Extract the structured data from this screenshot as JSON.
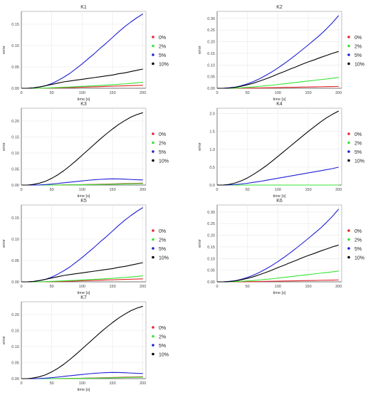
{
  "colors": {
    "0%": "#e6252a",
    "2%": "#33e533",
    "5%": "#1f1fd6",
    "10%": "#000000",
    "grid": "#e8e8e8",
    "axis": "#555555"
  },
  "chart_data": [
    {
      "type": "line",
      "title": "K1",
      "xlabel": "time [s]",
      "ylabel": "error",
      "xlim": [
        0,
        205
      ],
      "ylim": [
        0,
        0.18
      ],
      "xticks": [
        0,
        50,
        100,
        150,
        200
      ],
      "yticks": [
        0.0,
        0.05,
        0.1,
        0.15
      ],
      "ytick_labels": [
        "0.00",
        "0.05",
        "0.10",
        "0.15"
      ],
      "grid": true,
      "legend": "right",
      "x": [
        0,
        10,
        20,
        30,
        40,
        50,
        60,
        70,
        80,
        90,
        100,
        110,
        120,
        130,
        140,
        150,
        160,
        170,
        180,
        190,
        200
      ],
      "series": [
        {
          "name": "0%",
          "color_key": "0%",
          "values": [
            0,
            0,
            0,
            0,
            0.0002,
            0.0005,
            0.0008,
            0.0012,
            0.0016,
            0.002,
            0.0025,
            0.003,
            0.0034,
            0.0039,
            0.0044,
            0.0048,
            0.0053,
            0.0057,
            0.0061,
            0.0065,
            0.007
          ]
        },
        {
          "name": "2%",
          "color_key": "2%",
          "values": [
            0,
            0,
            0,
            0.0002,
            0.0006,
            0.0012,
            0.0018,
            0.0024,
            0.003,
            0.0037,
            0.0044,
            0.0051,
            0.0058,
            0.0066,
            0.0074,
            0.0083,
            0.0092,
            0.0102,
            0.0113,
            0.0126,
            0.014
          ]
        },
        {
          "name": "5%",
          "color_key": "5%",
          "values": [
            0,
            0,
            0.001,
            0.003,
            0.006,
            0.011,
            0.018,
            0.026,
            0.035,
            0.046,
            0.057,
            0.069,
            0.081,
            0.094,
            0.106,
            0.119,
            0.132,
            0.144,
            0.155,
            0.165,
            0.174
          ]
        },
        {
          "name": "10%",
          "color_key": "10%",
          "values": [
            0,
            0,
            0.001,
            0.003,
            0.006,
            0.009,
            0.012,
            0.015,
            0.017,
            0.019,
            0.021,
            0.023,
            0.025,
            0.027,
            0.029,
            0.031,
            0.034,
            0.036,
            0.039,
            0.042,
            0.045
          ]
        }
      ]
    },
    {
      "type": "line",
      "title": "K2",
      "xlabel": "time [s]",
      "ylabel": "error",
      "xlim": [
        0,
        205
      ],
      "ylim": [
        0,
        0.33
      ],
      "xticks": [
        0,
        50,
        100,
        150,
        200
      ],
      "yticks": [
        0.0,
        0.05,
        0.1,
        0.15,
        0.2,
        0.25,
        0.3
      ],
      "ytick_labels": [
        "0.00",
        "0.05",
        "0.10",
        "0.15",
        "0.20",
        "0.25",
        "0.30"
      ],
      "grid": true,
      "legend": "right",
      "x": [
        0,
        10,
        20,
        30,
        40,
        50,
        60,
        70,
        80,
        90,
        100,
        110,
        120,
        130,
        140,
        150,
        160,
        170,
        180,
        190,
        200
      ],
      "series": [
        {
          "name": "0%",
          "color_key": "0%",
          "values": [
            0,
            0,
            0,
            0,
            0,
            0.0005,
            0.001,
            0.0015,
            0.002,
            0.0025,
            0.003,
            0.0035,
            0.004,
            0.0045,
            0.005,
            0.0055,
            0.006,
            0.0065,
            0.007,
            0.0075,
            0.008
          ]
        },
        {
          "name": "2%",
          "color_key": "2%",
          "values": [
            0,
            0,
            0,
            0.001,
            0.002,
            0.004,
            0.006,
            0.008,
            0.011,
            0.013,
            0.016,
            0.019,
            0.022,
            0.025,
            0.028,
            0.031,
            0.034,
            0.037,
            0.04,
            0.043,
            0.046
          ]
        },
        {
          "name": "5%",
          "color_key": "5%",
          "values": [
            0,
            0,
            0.002,
            0.005,
            0.011,
            0.019,
            0.029,
            0.041,
            0.055,
            0.07,
            0.087,
            0.105,
            0.124,
            0.144,
            0.165,
            0.186,
            0.208,
            0.23,
            0.255,
            0.282,
            0.312
          ]
        },
        {
          "name": "10%",
          "color_key": "10%",
          "values": [
            0,
            0,
            0.001,
            0.004,
            0.009,
            0.015,
            0.022,
            0.031,
            0.04,
            0.05,
            0.061,
            0.071,
            0.082,
            0.092,
            0.103,
            0.113,
            0.122,
            0.132,
            0.141,
            0.15,
            0.158
          ]
        }
      ]
    },
    {
      "type": "line",
      "title": "K3",
      "xlabel": "time [s]",
      "ylabel": "error",
      "xlim": [
        0,
        205
      ],
      "ylim": [
        0,
        0.24
      ],
      "xticks": [
        0,
        50,
        100,
        150,
        200
      ],
      "yticks": [
        0.0,
        0.05,
        0.1,
        0.15,
        0.2
      ],
      "ytick_labels": [
        "0.00",
        "0.05",
        "0.10",
        "0.15",
        "0.20"
      ],
      "grid": true,
      "legend": "right",
      "x": [
        0,
        10,
        20,
        30,
        40,
        50,
        60,
        70,
        80,
        90,
        100,
        110,
        120,
        130,
        140,
        150,
        160,
        170,
        180,
        190,
        200
      ],
      "series": [
        {
          "name": "0%",
          "color_key": "0%",
          "values": [
            0,
            0,
            0,
            0,
            0,
            0,
            0.0002,
            0.0005,
            0.0008,
            0.0011,
            0.0014,
            0.0018,
            0.0022,
            0.0026,
            0.003,
            0.0035,
            0.004,
            0.0045,
            0.005,
            0.0055,
            0.006
          ]
        },
        {
          "name": "2%",
          "color_key": "2%",
          "values": [
            0,
            0,
            0,
            0,
            0,
            0,
            0.0001,
            0.0003,
            0.0005,
            0.0007,
            0.0009,
            0.0012,
            0.0015,
            0.0018,
            0.0022,
            0.0026,
            0.003,
            0.0034,
            0.0038,
            0.0042,
            0.0045
          ]
        },
        {
          "name": "5%",
          "color_key": "5%",
          "values": [
            0,
            0,
            0,
            0.0005,
            0.0015,
            0.003,
            0.005,
            0.007,
            0.009,
            0.011,
            0.013,
            0.015,
            0.0165,
            0.0178,
            0.0188,
            0.0192,
            0.019,
            0.0185,
            0.0175,
            0.0165,
            0.016
          ]
        },
        {
          "name": "10%",
          "color_key": "10%",
          "values": [
            0,
            0,
            0.002,
            0.006,
            0.012,
            0.021,
            0.032,
            0.045,
            0.06,
            0.076,
            0.093,
            0.11,
            0.127,
            0.144,
            0.16,
            0.175,
            0.189,
            0.201,
            0.212,
            0.22,
            0.226
          ]
        }
      ]
    },
    {
      "type": "line",
      "title": "K4",
      "xlabel": "time [s]",
      "ylabel": "error",
      "xlim": [
        0,
        205
      ],
      "ylim": [
        0,
        2.15
      ],
      "xticks": [
        0,
        50,
        100,
        150,
        200
      ],
      "yticks": [
        0.0,
        0.5,
        1.0,
        1.5,
        2.0
      ],
      "ytick_labels": [
        "0.0",
        "0.5",
        "1.0",
        "1.5",
        "2.0"
      ],
      "grid": true,
      "legend": "right",
      "x": [
        0,
        10,
        20,
        30,
        40,
        50,
        60,
        70,
        80,
        90,
        100,
        110,
        120,
        130,
        140,
        150,
        160,
        170,
        180,
        190,
        200
      ],
      "series": [
        {
          "name": "0%",
          "color_key": "0%",
          "values": [
            0,
            0,
            0,
            0,
            0,
            0,
            0,
            0,
            0,
            0,
            0,
            0,
            0,
            0,
            0,
            0,
            0,
            0,
            0,
            0,
            0
          ]
        },
        {
          "name": "2%",
          "color_key": "2%",
          "values": [
            0,
            0,
            0,
            0,
            0,
            0,
            0,
            0,
            0,
            0,
            0,
            0,
            0,
            0,
            0,
            0,
            0,
            0,
            0,
            0,
            0
          ]
        },
        {
          "name": "5%",
          "color_key": "5%",
          "values": [
            0,
            0,
            0.005,
            0.015,
            0.03,
            0.05,
            0.075,
            0.1,
            0.13,
            0.16,
            0.19,
            0.22,
            0.25,
            0.28,
            0.31,
            0.34,
            0.37,
            0.4,
            0.43,
            0.46,
            0.5
          ]
        },
        {
          "name": "10%",
          "color_key": "10%",
          "values": [
            0,
            0,
            0.02,
            0.06,
            0.12,
            0.2,
            0.3,
            0.41,
            0.53,
            0.66,
            0.8,
            0.94,
            1.08,
            1.22,
            1.36,
            1.5,
            1.63,
            1.76,
            1.88,
            1.98,
            2.07
          ]
        }
      ]
    },
    {
      "type": "line",
      "title": "K5",
      "xlabel": "time [s]",
      "ylabel": "error",
      "xlim": [
        0,
        205
      ],
      "ylim": [
        0,
        0.18
      ],
      "xticks": [
        0,
        50,
        100,
        150,
        200
      ],
      "yticks": [
        0.0,
        0.05,
        0.1,
        0.15
      ],
      "ytick_labels": [
        "0.00",
        "0.05",
        "0.10",
        "0.15"
      ],
      "grid": true,
      "legend": "right",
      "x": [
        0,
        10,
        20,
        30,
        40,
        50,
        60,
        70,
        80,
        90,
        100,
        110,
        120,
        130,
        140,
        150,
        160,
        170,
        180,
        190,
        200
      ],
      "series": [
        {
          "name": "0%",
          "color_key": "0%",
          "values": [
            0,
            0,
            0,
            0,
            0.0002,
            0.0005,
            0.0008,
            0.0012,
            0.0016,
            0.002,
            0.0025,
            0.003,
            0.0034,
            0.0039,
            0.0044,
            0.0048,
            0.0053,
            0.0057,
            0.0061,
            0.0065,
            0.007
          ]
        },
        {
          "name": "2%",
          "color_key": "2%",
          "values": [
            0,
            0,
            0,
            0.0002,
            0.0006,
            0.0012,
            0.0018,
            0.0024,
            0.003,
            0.0037,
            0.0044,
            0.0051,
            0.0058,
            0.0066,
            0.0074,
            0.0083,
            0.0092,
            0.0102,
            0.0113,
            0.0126,
            0.014
          ]
        },
        {
          "name": "5%",
          "color_key": "5%",
          "values": [
            0,
            0,
            0.001,
            0.003,
            0.006,
            0.011,
            0.018,
            0.026,
            0.035,
            0.046,
            0.057,
            0.069,
            0.081,
            0.094,
            0.106,
            0.119,
            0.132,
            0.144,
            0.155,
            0.165,
            0.174
          ]
        },
        {
          "name": "10%",
          "color_key": "10%",
          "values": [
            0,
            0,
            0.001,
            0.003,
            0.006,
            0.009,
            0.012,
            0.015,
            0.017,
            0.019,
            0.021,
            0.023,
            0.025,
            0.027,
            0.029,
            0.031,
            0.034,
            0.036,
            0.039,
            0.042,
            0.045
          ]
        }
      ]
    },
    {
      "type": "line",
      "title": "K6",
      "xlabel": "time [s]",
      "ylabel": "error",
      "xlim": [
        0,
        205
      ],
      "ylim": [
        0,
        0.33
      ],
      "xticks": [
        0,
        50,
        100,
        150,
        200
      ],
      "yticks": [
        0.0,
        0.05,
        0.1,
        0.15,
        0.2,
        0.25,
        0.3
      ],
      "ytick_labels": [
        "0.00",
        "0.05",
        "0.10",
        "0.15",
        "0.20",
        "0.25",
        "0.30"
      ],
      "grid": true,
      "legend": "right",
      "x": [
        0,
        10,
        20,
        30,
        40,
        50,
        60,
        70,
        80,
        90,
        100,
        110,
        120,
        130,
        140,
        150,
        160,
        170,
        180,
        190,
        200
      ],
      "series": [
        {
          "name": "0%",
          "color_key": "0%",
          "values": [
            0,
            0,
            0,
            0,
            0,
            0.0005,
            0.001,
            0.0015,
            0.002,
            0.0025,
            0.003,
            0.0035,
            0.004,
            0.0045,
            0.005,
            0.0055,
            0.006,
            0.0065,
            0.007,
            0.0075,
            0.008
          ]
        },
        {
          "name": "2%",
          "color_key": "2%",
          "values": [
            0,
            0,
            0,
            0.001,
            0.002,
            0.004,
            0.006,
            0.008,
            0.011,
            0.013,
            0.016,
            0.019,
            0.022,
            0.025,
            0.028,
            0.031,
            0.034,
            0.037,
            0.04,
            0.043,
            0.046
          ]
        },
        {
          "name": "5%",
          "color_key": "5%",
          "values": [
            0,
            0,
            0.002,
            0.005,
            0.011,
            0.019,
            0.029,
            0.041,
            0.055,
            0.07,
            0.087,
            0.105,
            0.124,
            0.144,
            0.165,
            0.186,
            0.208,
            0.23,
            0.255,
            0.282,
            0.312
          ]
        },
        {
          "name": "10%",
          "color_key": "10%",
          "values": [
            0,
            0,
            0.001,
            0.004,
            0.009,
            0.015,
            0.022,
            0.031,
            0.04,
            0.05,
            0.061,
            0.071,
            0.082,
            0.092,
            0.103,
            0.113,
            0.122,
            0.132,
            0.141,
            0.15,
            0.158
          ]
        }
      ]
    },
    {
      "type": "line",
      "title": "K7",
      "xlabel": "time [s]",
      "ylabel": "error",
      "xlim": [
        0,
        205
      ],
      "ylim": [
        0,
        0.24
      ],
      "xticks": [
        0,
        50,
        100,
        150,
        200
      ],
      "yticks": [
        0.0,
        0.05,
        0.1,
        0.15,
        0.2
      ],
      "ytick_labels": [
        "0.00",
        "0.05",
        "0.10",
        "0.15",
        "0.20"
      ],
      "grid": true,
      "legend": "right",
      "x": [
        0,
        10,
        20,
        30,
        40,
        50,
        60,
        70,
        80,
        90,
        100,
        110,
        120,
        130,
        140,
        150,
        160,
        170,
        180,
        190,
        200
      ],
      "series": [
        {
          "name": "0%",
          "color_key": "0%",
          "values": [
            0,
            0,
            0,
            0,
            0,
            0,
            0.0002,
            0.0005,
            0.0008,
            0.0011,
            0.0014,
            0.0018,
            0.0022,
            0.0026,
            0.003,
            0.0035,
            0.004,
            0.0045,
            0.005,
            0.0055,
            0.006
          ]
        },
        {
          "name": "2%",
          "color_key": "2%",
          "values": [
            0,
            0,
            0,
            0,
            0,
            0,
            0.0001,
            0.0003,
            0.0005,
            0.0007,
            0.0009,
            0.0012,
            0.0015,
            0.0018,
            0.0022,
            0.0026,
            0.003,
            0.0034,
            0.0038,
            0.0042,
            0.0045
          ]
        },
        {
          "name": "5%",
          "color_key": "5%",
          "values": [
            0,
            0,
            0,
            0.0005,
            0.0015,
            0.003,
            0.005,
            0.007,
            0.009,
            0.011,
            0.013,
            0.015,
            0.0165,
            0.0178,
            0.0188,
            0.0192,
            0.019,
            0.0185,
            0.0175,
            0.0165,
            0.016
          ]
        },
        {
          "name": "10%",
          "color_key": "10%",
          "values": [
            0,
            0,
            0.002,
            0.006,
            0.012,
            0.021,
            0.032,
            0.045,
            0.06,
            0.076,
            0.093,
            0.11,
            0.127,
            0.144,
            0.16,
            0.175,
            0.189,
            0.201,
            0.212,
            0.22,
            0.226
          ]
        }
      ]
    }
  ]
}
